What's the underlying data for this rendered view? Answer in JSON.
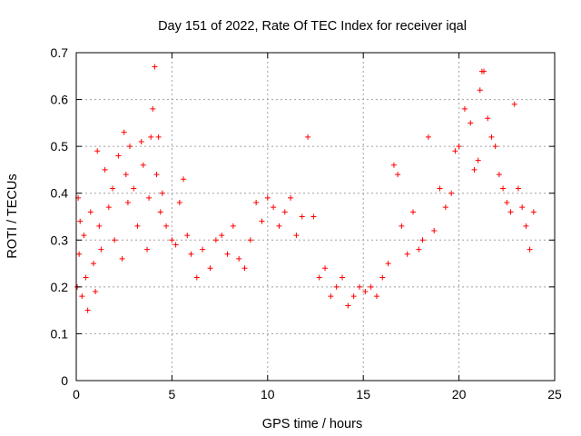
{
  "chart_data": {
    "type": "scatter",
    "title": "Day 151 of 2022, Rate Of TEC Index for receiver iqal",
    "xlabel": "GPS time / hours",
    "ylabel": "ROTI / TECUs",
    "xlim": [
      0,
      25
    ],
    "ylim": [
      0,
      0.7
    ],
    "xticks": [
      "0",
      "5",
      "10",
      "15",
      "20",
      "25"
    ],
    "yticks": [
      "0",
      "0.1",
      "0.2",
      "0.3",
      "0.4",
      "0.5",
      "0.6",
      "0.7"
    ],
    "grid": true,
    "marker": "+",
    "color": "#ff0000",
    "series": [
      {
        "x": [
          0.05,
          0.1,
          0.15,
          0.2,
          0.3,
          0.4,
          0.5,
          0.6,
          0.75,
          0.9,
          1.0,
          1.1,
          1.2,
          1.3,
          1.5,
          1.7,
          1.9,
          2.0,
          2.2,
          2.4,
          2.5,
          2.6,
          2.7,
          2.8,
          3.0,
          3.2,
          3.4,
          3.5,
          3.7,
          3.8,
          3.9,
          4.0,
          4.1,
          4.2,
          4.3,
          4.4,
          4.5,
          4.7,
          5.0,
          5.2,
          5.4,
          5.6,
          5.8,
          6.0,
          6.3,
          6.6,
          7.0,
          7.3,
          7.6,
          7.9,
          8.2,
          8.5,
          8.8,
          9.1,
          9.4,
          9.7,
          10.0,
          10.3,
          10.6,
          10.9,
          11.2,
          11.5,
          11.8,
          12.1,
          12.4,
          12.7,
          13.0,
          13.3,
          13.6,
          13.9,
          14.2,
          14.5,
          14.8,
          15.1,
          15.4,
          15.7,
          16.0,
          16.3,
          16.6,
          16.8,
          17.0,
          17.3,
          17.6,
          17.9,
          18.1,
          18.4,
          18.7,
          19.0,
          19.3,
          19.6,
          19.8,
          20.0,
          20.3,
          20.6,
          20.8,
          21.0,
          21.1,
          21.2,
          21.3,
          21.5,
          21.7,
          21.9,
          22.1,
          22.3,
          22.5,
          22.7,
          22.9,
          23.1,
          23.3,
          23.5,
          23.7,
          23.9
        ],
        "y": [
          0.2,
          0.39,
          0.27,
          0.34,
          0.18,
          0.31,
          0.22,
          0.15,
          0.36,
          0.25,
          0.19,
          0.49,
          0.33,
          0.28,
          0.45,
          0.37,
          0.41,
          0.3,
          0.48,
          0.26,
          0.53,
          0.44,
          0.38,
          0.5,
          0.41,
          0.33,
          0.51,
          0.46,
          0.28,
          0.39,
          0.52,
          0.58,
          0.67,
          0.44,
          0.52,
          0.36,
          0.4,
          0.33,
          0.3,
          0.29,
          0.38,
          0.43,
          0.31,
          0.27,
          0.22,
          0.28,
          0.24,
          0.3,
          0.31,
          0.27,
          0.33,
          0.26,
          0.24,
          0.3,
          0.38,
          0.34,
          0.39,
          0.37,
          0.33,
          0.36,
          0.39,
          0.31,
          0.35,
          0.52,
          0.35,
          0.22,
          0.24,
          0.18,
          0.2,
          0.22,
          0.16,
          0.18,
          0.2,
          0.19,
          0.2,
          0.18,
          0.22,
          0.25,
          0.46,
          0.44,
          0.33,
          0.27,
          0.36,
          0.28,
          0.3,
          0.52,
          0.32,
          0.41,
          0.37,
          0.4,
          0.49,
          0.5,
          0.58,
          0.55,
          0.45,
          0.47,
          0.62,
          0.66,
          0.66,
          0.56,
          0.52,
          0.5,
          0.44,
          0.41,
          0.38,
          0.36,
          0.59,
          0.41,
          0.37,
          0.33,
          0.28,
          0.36
        ]
      }
    ]
  }
}
